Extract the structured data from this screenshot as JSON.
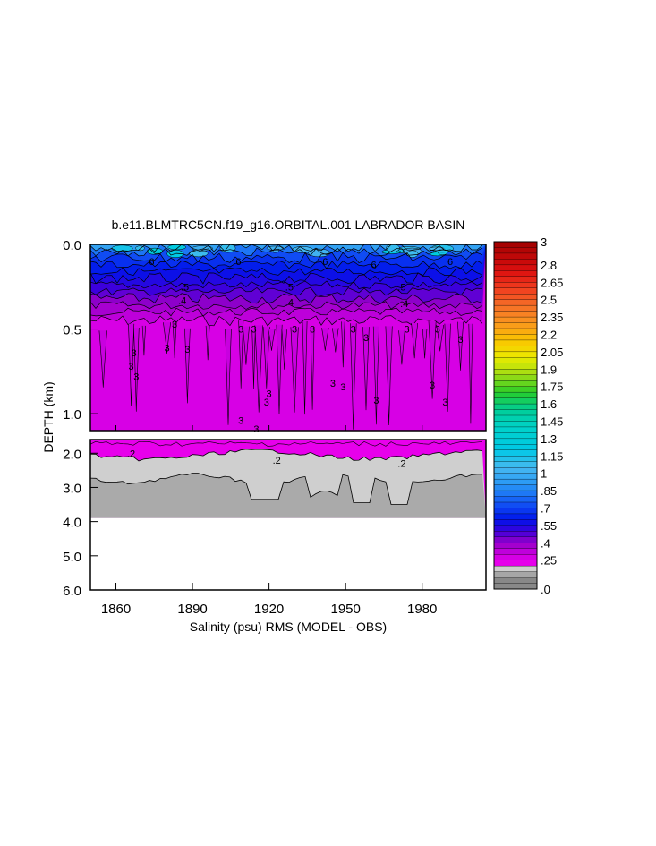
{
  "chart_data": {
    "type": "heatmap",
    "title": "b.e11.BLMTRC5CN.f19_g16.ORBITAL.001 LABRADOR BASIN",
    "xlabel": "Salinity (psu) RMS (MODEL - OBS)",
    "ylabel": "DEPTH (km)",
    "xlim": [
      1850,
      2005
    ],
    "x_ticks": [
      "1860",
      "1890",
      "1920",
      "1950",
      "1980"
    ],
    "x_tick_values": [
      1860,
      1890,
      1920,
      1950,
      1980
    ],
    "upper_panel": {
      "ylim": [
        0.0,
        1.1
      ],
      "y_ticks": [
        "0.0",
        "0.5",
        "1.0"
      ],
      "y_tick_values": [
        0.0,
        0.5,
        1.0
      ]
    },
    "lower_panel": {
      "ylim": [
        1.6,
        6.0
      ],
      "y_ticks": [
        "2.0",
        "3.0",
        "4.0",
        "5.0",
        "6.0"
      ],
      "y_tick_values": [
        2.0,
        3.0,
        4.0,
        5.0,
        6.0
      ],
      "data_bottom_km": 3.9
    },
    "colorbar": {
      "min": 0.0,
      "max": 3.0,
      "step": 0.05,
      "labels": [
        "3",
        "2.8",
        "2.65",
        "2.5",
        "2.35",
        "2.2",
        "2.05",
        "1.9",
        "1.75",
        "1.6",
        "1.45",
        "1.3",
        "1.15",
        "1",
        ".85",
        ".7",
        ".55",
        ".4",
        ".25",
        ".0"
      ],
      "label_values": [
        3.0,
        2.8,
        2.65,
        2.5,
        2.35,
        2.2,
        2.05,
        1.9,
        1.75,
        1.6,
        1.45,
        1.3,
        1.15,
        1.0,
        0.85,
        0.7,
        0.55,
        0.4,
        0.25,
        0.0
      ]
    },
    "depth_profile": [
      {
        "depth": 0.0,
        "value": 0.72
      },
      {
        "depth": 0.1,
        "value": 0.6
      },
      {
        "depth": 0.2,
        "value": 0.5
      },
      {
        "depth": 0.3,
        "value": 0.38
      },
      {
        "depth": 0.4,
        "value": 0.32
      },
      {
        "depth": 1.1,
        "value": 0.27
      },
      {
        "depth": 2.0,
        "value": 0.22
      },
      {
        "depth": 2.2,
        "value": 0.18
      },
      {
        "depth": 3.0,
        "value": 0.12
      },
      {
        "depth": 3.9,
        "value": 0.08
      }
    ],
    "contour_labels": [
      {
        "text": "6",
        "x": 1874,
        "depth": 0.1
      },
      {
        "text": "6",
        "x": 1908,
        "depth": 0.1
      },
      {
        "text": "6",
        "x": 1942,
        "depth": 0.1
      },
      {
        "text": "6",
        "x": 1961,
        "depth": 0.12
      },
      {
        "text": "6",
        "x": 1991,
        "depth": 0.1
      },
      {
        "text": ".5",
        "x": 1887,
        "depth": 0.25
      },
      {
        "text": ".5",
        "x": 1928,
        "depth": 0.25
      },
      {
        "text": ".5",
        "x": 1972,
        "depth": 0.25
      },
      {
        "text": ".4",
        "x": 1886,
        "depth": 0.33
      },
      {
        "text": ".4",
        "x": 1928,
        "depth": 0.34
      },
      {
        "text": ".4",
        "x": 1973,
        "depth": 0.35
      },
      {
        "text": "3",
        "x": 1883,
        "depth": 0.47
      },
      {
        "text": "3",
        "x": 1909,
        "depth": 0.5
      },
      {
        "text": "3",
        "x": 1914,
        "depth": 0.5
      },
      {
        "text": "3",
        "x": 1930,
        "depth": 0.5
      },
      {
        "text": "3",
        "x": 1937,
        "depth": 0.5
      },
      {
        "text": "3",
        "x": 1953,
        "depth": 0.5
      },
      {
        "text": "3",
        "x": 1958,
        "depth": 0.55
      },
      {
        "text": "3",
        "x": 1974,
        "depth": 0.5
      },
      {
        "text": "3",
        "x": 1986,
        "depth": 0.5
      },
      {
        "text": "3",
        "x": 1995,
        "depth": 0.56
      },
      {
        "text": "3",
        "x": 1867,
        "depth": 0.64
      },
      {
        "text": "3",
        "x": 1880,
        "depth": 0.61
      },
      {
        "text": "3",
        "x": 1888,
        "depth": 0.62
      },
      {
        "text": "3",
        "x": 1866,
        "depth": 0.72
      },
      {
        "text": "3",
        "x": 1868,
        "depth": 0.78
      },
      {
        "text": "3",
        "x": 1945,
        "depth": 0.82
      },
      {
        "text": "3",
        "x": 1949,
        "depth": 0.84
      },
      {
        "text": "3",
        "x": 1920,
        "depth": 0.88
      },
      {
        "text": "3",
        "x": 1984,
        "depth": 0.83
      },
      {
        "text": "3",
        "x": 1962,
        "depth": 0.92
      },
      {
        "text": "3",
        "x": 1919,
        "depth": 0.93
      },
      {
        "text": "3",
        "x": 1989,
        "depth": 0.93
      },
      {
        "text": "3",
        "x": 1909,
        "depth": 1.04
      },
      {
        "text": "3",
        "x": 1915,
        "depth": 1.09
      },
      {
        "text": ".2",
        "x": 1866,
        "depth": 2.0
      },
      {
        "text": ".2",
        "x": 1923,
        "depth": 2.2
      },
      {
        "text": ".2",
        "x": 1972,
        "depth": 2.3
      }
    ]
  }
}
